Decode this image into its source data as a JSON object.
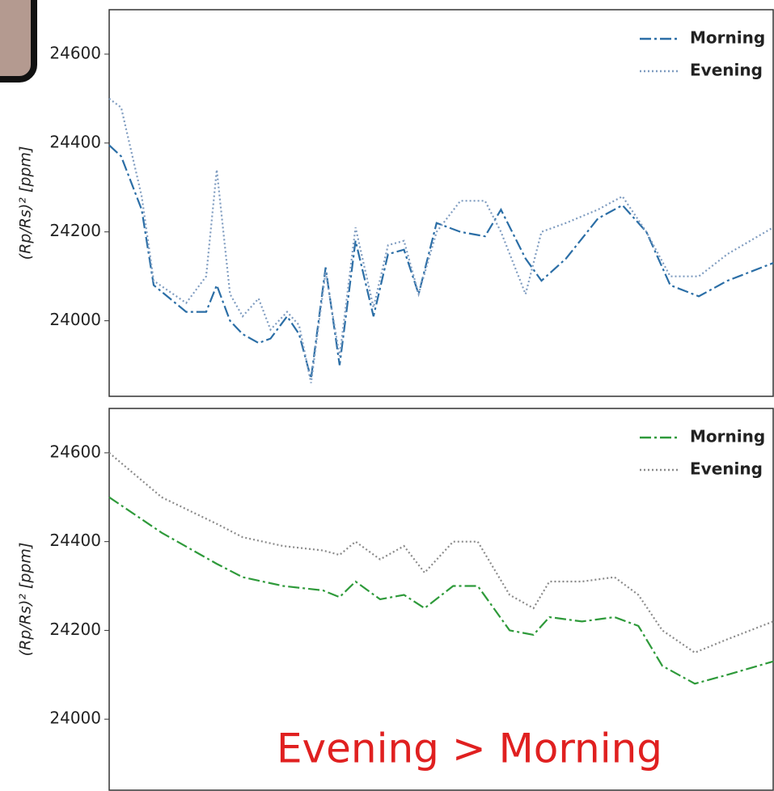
{
  "chart_data": [
    {
      "type": "line",
      "ylabel": "(Rp/Rs)² [ppm]",
      "legend": "upper right",
      "xlim": [
        0,
        100
      ],
      "ylim": [
        23830,
        24700
      ],
      "yticks": [
        24000,
        24200,
        24400,
        24600
      ],
      "x": [
        0,
        1.8,
        4.9,
        6.7,
        11.6,
        14.6,
        16.2,
        18.2,
        20.1,
        22.5,
        24.3,
        26.8,
        28.6,
        30.4,
        32.6,
        34.7,
        37.1,
        39.8,
        42,
        44.4,
        46.6,
        49.3,
        52.9,
        56.6,
        59,
        62.7,
        65.1,
        68.8,
        73.6,
        77.3,
        80.9,
        84.5,
        88.8,
        93.1,
        100
      ],
      "series": [
        {
          "name": "Morning",
          "color": "#2b6ea6",
          "dash": "dashdot",
          "values": [
            24395,
            24370,
            24250,
            24080,
            24020,
            24020,
            24080,
            24000,
            23970,
            23950,
            23960,
            24010,
            23970,
            23870,
            24120,
            23900,
            24180,
            24010,
            24150,
            24160,
            24060,
            24220,
            24200,
            24190,
            24250,
            24140,
            24090,
            24140,
            24230,
            24260,
            24200,
            24080,
            24055,
            24090,
            24130
          ]
        },
        {
          "name": "Evening",
          "color": "#7f9cc0",
          "dash": "dotted",
          "values": [
            24500,
            24480,
            24280,
            24090,
            24040,
            24100,
            24340,
            24060,
            24010,
            24050,
            23980,
            24020,
            23990,
            23860,
            24110,
            23920,
            24210,
            24030,
            24170,
            24180,
            24060,
            24200,
            24270,
            24270,
            24200,
            24060,
            24200,
            24220,
            24250,
            24280,
            24200,
            24100,
            24100,
            24150,
            24210
          ]
        }
      ]
    },
    {
      "type": "line",
      "ylabel": "(Rp/Rs)² [ppm]",
      "legend": "upper right",
      "annotation": "Evening > Morning",
      "xlim": [
        0,
        100
      ],
      "ylim": [
        23840,
        24700
      ],
      "yticks": [
        24000,
        24200,
        24400,
        24600
      ],
      "x": [
        0,
        7.9,
        16.2,
        20.1,
        26.2,
        32.2,
        34.7,
        37.1,
        40.8,
        44.4,
        47.5,
        51.8,
        55.5,
        60.3,
        63.9,
        66.3,
        71.2,
        76.1,
        79.7,
        83.3,
        88.2,
        93.1,
        100
      ],
      "series": [
        {
          "name": "Morning",
          "color": "#2e9a3a",
          "dash": "dashdot",
          "values": [
            24500,
            24420,
            24350,
            24320,
            24300,
            24290,
            24275,
            24310,
            24270,
            24280,
            24250,
            24300,
            24300,
            24200,
            24190,
            24230,
            24220,
            24230,
            24210,
            24120,
            24080,
            24100,
            24130
          ]
        },
        {
          "name": "Evening",
          "color": "#8a8a8a",
          "dash": "dotted",
          "values": [
            24600,
            24500,
            24440,
            24410,
            24390,
            24380,
            24370,
            24400,
            24360,
            24390,
            24330,
            24400,
            24400,
            24280,
            24250,
            24310,
            24310,
            24320,
            24280,
            24200,
            24150,
            24180,
            24220
          ]
        }
      ]
    }
  ]
}
